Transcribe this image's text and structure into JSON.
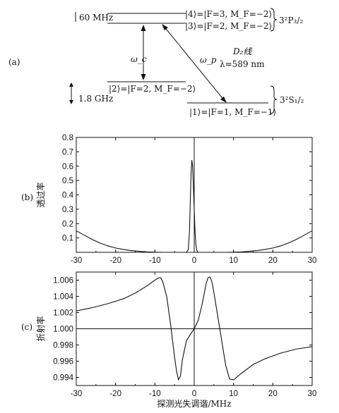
{
  "panel_a": {
    "panel_label": "(a)",
    "split_upper": "60 MHz",
    "split_lower": "1.8 GHz",
    "level4": "|4⟩=|F=3, M_F=−2⟩",
    "level3": "|3⟩=|F=2, M_F=−2⟩",
    "level2": "|2⟩=|F=2, M_F=−2⟩",
    "level1": "|1⟩=|F=1, M_F=−1⟩",
    "term_upper": "3²P₃/₂",
    "term_lower": "3²S₁/₂",
    "omega_c": "ω_c",
    "omega_p": "ω_p",
    "line_name": "D₂线",
    "wavelength": "λ=589 nm"
  },
  "chart_data": [
    {
      "type": "line",
      "panel_label": "(b)",
      "ylabel": "透过率",
      "xlabel": "",
      "xlim": [
        -30,
        30
      ],
      "ylim": [
        0,
        0.8
      ],
      "xticks": [
        -30,
        -20,
        -10,
        0,
        10,
        20,
        30
      ],
      "yticks": [
        0.1,
        0.2,
        0.3,
        0.4,
        0.5,
        0.6,
        0.7,
        0.8
      ],
      "vertical_line_x": 0,
      "series": [
        {
          "x": [
            -30,
            -28,
            -26,
            -24,
            -22,
            -20,
            -18,
            -16,
            -14,
            -12,
            -10,
            -8,
            -6,
            -4,
            -2,
            -1.5,
            -1.2,
            -1,
            -0.8,
            -0.6,
            -0.4,
            -0.2,
            0,
            0.2,
            0.4,
            0.6,
            0.8,
            1,
            2,
            4,
            6,
            8,
            10,
            12,
            14,
            16,
            18,
            20,
            22,
            24,
            26,
            28,
            30
          ],
          "y": [
            0.15,
            0.12,
            0.09,
            0.065,
            0.045,
            0.03,
            0.02,
            0.012,
            0.007,
            0.003,
            0.001,
            0,
            0,
            0,
            0,
            0.02,
            0.15,
            0.35,
            0.55,
            0.64,
            0.6,
            0.45,
            0.3,
            0.15,
            0.06,
            0.02,
            0.005,
            0,
            0,
            0,
            0,
            0,
            0.001,
            0.003,
            0.007,
            0.012,
            0.02,
            0.03,
            0.045,
            0.065,
            0.09,
            0.12,
            0.15
          ]
        }
      ]
    },
    {
      "type": "line",
      "panel_label": "(c)",
      "ylabel": "折射率",
      "xlabel": "探测光失调谐/MHz",
      "xlim": [
        -30,
        30
      ],
      "ylim": [
        0.993,
        1.007
      ],
      "xticks": [
        -30,
        -20,
        -10,
        0,
        10,
        20,
        30
      ],
      "yticks": [
        "1.006",
        "1.004",
        "1.002",
        "1.000",
        "0.998",
        "0.996",
        "0.994"
      ],
      "horizontal_line_y": 1.0,
      "vertical_line_x": 0,
      "series": [
        {
          "x": [
            -30,
            -26,
            -22,
            -18,
            -15,
            -12,
            -10,
            -9,
            -8.5,
            -8,
            -7,
            -6,
            -5,
            -4.5,
            -4,
            -3.5,
            -3,
            -2,
            -1,
            0,
            1,
            2,
            3,
            3.5,
            4,
            4.5,
            5,
            6,
            7,
            8,
            9,
            10,
            12,
            15,
            18,
            22,
            26,
            30
          ],
          "y": [
            1.0022,
            1.0026,
            1.0031,
            1.0037,
            1.0044,
            1.0053,
            1.006,
            1.0063,
            1.0063,
            1.0058,
            1.004,
            1.0005,
            0.9965,
            0.9948,
            0.9937,
            0.9942,
            0.9962,
            0.9985,
            0.9993,
            1.0,
            1.001,
            1.003,
            1.0055,
            1.0063,
            1.0064,
            1.0058,
            1.0045,
            1.0015,
            0.9985,
            0.9955,
            0.9938,
            0.9937,
            0.9945,
            0.9956,
            0.9963,
            0.997,
            0.9975,
            0.9978
          ]
        }
      ]
    }
  ]
}
